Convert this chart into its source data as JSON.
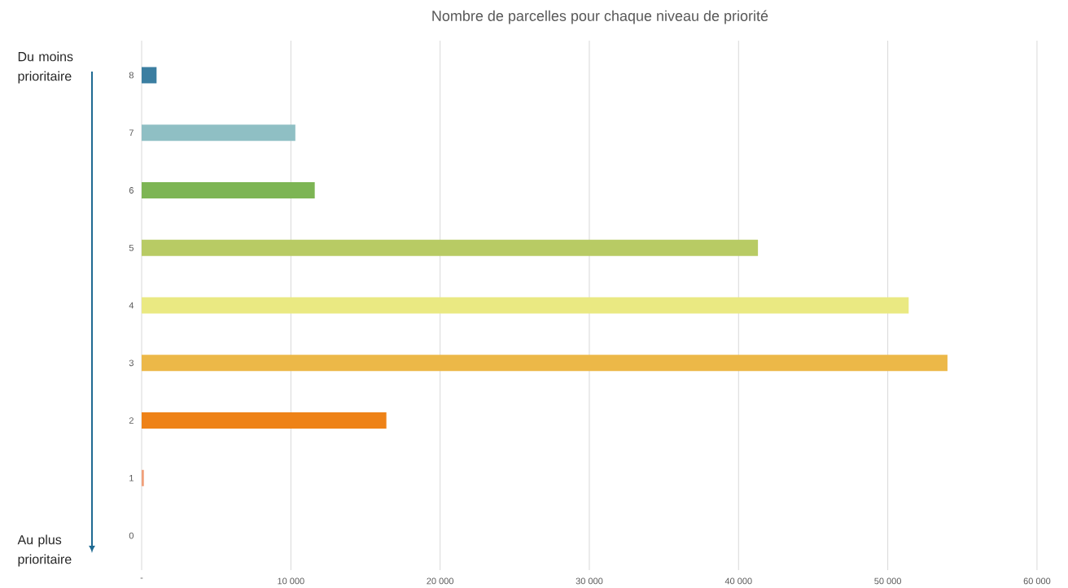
{
  "chart_data": {
    "type": "bar",
    "orientation": "horizontal",
    "title": "Nombre de parcelles pour chaque niveau de priorité",
    "categories": [
      "8",
      "7",
      "6",
      "5",
      "4",
      "3",
      "2",
      "1",
      "0"
    ],
    "values": [
      1000,
      10300,
      11600,
      41300,
      51400,
      54000,
      16400,
      150,
      0
    ],
    "colors": [
      "#3b7ea1",
      "#8fbfc4",
      "#7db554",
      "#b8cb64",
      "#eae982",
      "#ecb848",
      "#ee8217",
      "#f0a07a",
      "#f0a07a"
    ],
    "xlim": [
      0,
      60000
    ],
    "xticks": [
      {
        "value": 0,
        "label": "-"
      },
      {
        "value": 10000,
        "label": "10 000"
      },
      {
        "value": 20000,
        "label": "20 000"
      },
      {
        "value": 30000,
        "label": "30 000"
      },
      {
        "value": 40000,
        "label": "40 000"
      },
      {
        "value": 50000,
        "label": "50 000"
      },
      {
        "value": 60000,
        "label": "60 000"
      }
    ],
    "grid": "x",
    "annotations": [
      "Du moins prioritaire",
      "Au plus prioritaire"
    ]
  }
}
